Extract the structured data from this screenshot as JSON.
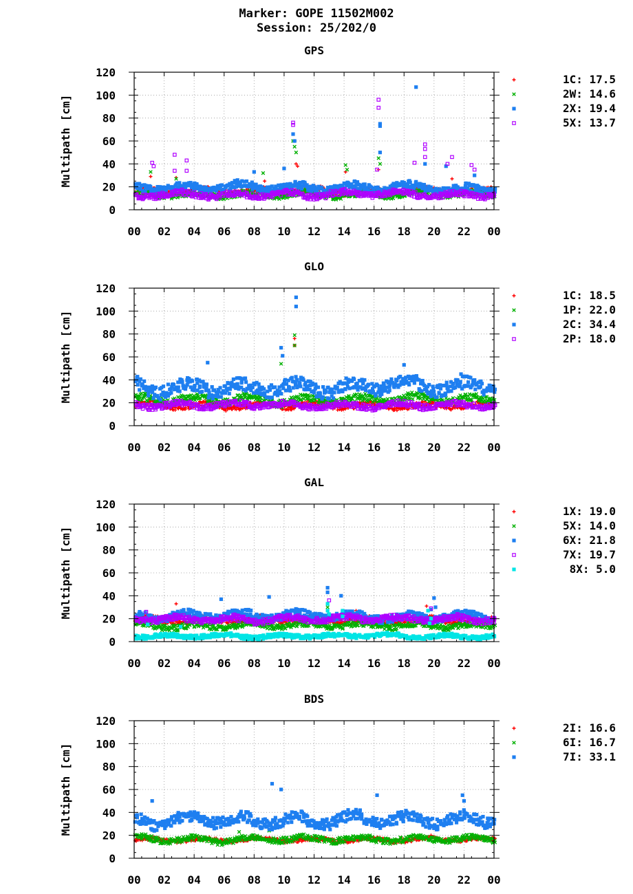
{
  "header": {
    "line1": "Marker: GOPE 11502M002",
    "line2": "Session: 25/202/0"
  },
  "colors": {
    "red": "#ff0000",
    "green": "#00b000",
    "blue": "#1e7ff0",
    "magenta": "#b000ff",
    "cyan": "#00e5e5"
  },
  "chart_data": [
    {
      "type": "scatter",
      "title": "GPS",
      "ylabel": "Multipath [cm]",
      "xlabel": "",
      "x_ticks": [
        "00",
        "02",
        "04",
        "06",
        "08",
        "10",
        "12",
        "14",
        "16",
        "18",
        "20",
        "22",
        "00"
      ],
      "y_ticks": [
        "0",
        "20",
        "40",
        "60",
        "80",
        "100",
        "120"
      ],
      "xlim": [
        0,
        24
      ],
      "ylim": [
        0,
        120
      ],
      "grid": true,
      "legend_position": "right",
      "series": [
        {
          "name": "1C",
          "stat": "17.5",
          "color": "red",
          "marker": "plus",
          "base": 16,
          "var": 3,
          "spikes": [
            [
              1.1,
              29
            ],
            [
              2.8,
              28
            ],
            [
              8.7,
              25
            ],
            [
              10.8,
              40
            ],
            [
              10.9,
              38
            ],
            [
              14.1,
              33
            ],
            [
              16.3,
              35
            ],
            [
              21.2,
              27
            ],
            [
              23.8,
              20
            ]
          ]
        },
        {
          "name": "2W",
          "stat": "14.6",
          "color": "green",
          "marker": "cross",
          "base": 13,
          "var": 3,
          "spikes": [
            [
              1.1,
              33
            ],
            [
              2.8,
              27
            ],
            [
              8.6,
              32
            ],
            [
              10.6,
              60
            ],
            [
              10.7,
              55
            ],
            [
              10.8,
              50
            ],
            [
              14.1,
              39
            ],
            [
              14.2,
              35
            ],
            [
              16.3,
              45
            ],
            [
              16.4,
              40
            ]
          ]
        },
        {
          "name": "2X",
          "stat": "19.4",
          "color": "blue",
          "marker": "square",
          "base": 19,
          "var": 4,
          "spikes": [
            [
              8.0,
              33
            ],
            [
              10.0,
              36
            ],
            [
              10.6,
              66
            ],
            [
              10.7,
              60
            ],
            [
              16.4,
              73
            ],
            [
              16.4,
              75
            ],
            [
              16.4,
              50
            ],
            [
              18.8,
              107
            ],
            [
              19.4,
              40
            ],
            [
              20.8,
              38
            ],
            [
              22.7,
              30
            ]
          ]
        },
        {
          "name": "5X",
          "stat": "13.7",
          "color": "magenta",
          "marker": "opensquare",
          "base": 13,
          "var": 3,
          "spikes": [
            [
              1.2,
              41
            ],
            [
              1.3,
              38
            ],
            [
              2.7,
              48
            ],
            [
              2.7,
              34
            ],
            [
              3.5,
              43
            ],
            [
              3.5,
              34
            ],
            [
              10.6,
              76
            ],
            [
              10.6,
              74
            ],
            [
              16.3,
              96
            ],
            [
              16.3,
              89
            ],
            [
              16.2,
              35
            ],
            [
              18.7,
              41
            ],
            [
              19.4,
              57
            ],
            [
              19.4,
              53
            ],
            [
              19.4,
              46
            ],
            [
              20.9,
              40
            ],
            [
              21.2,
              46
            ],
            [
              22.5,
              39
            ],
            [
              22.7,
              35
            ]
          ]
        }
      ]
    },
    {
      "type": "scatter",
      "title": "GLO",
      "ylabel": "Multipath [cm]",
      "xlabel": "",
      "x_ticks": [
        "00",
        "02",
        "04",
        "06",
        "08",
        "10",
        "12",
        "14",
        "16",
        "18",
        "20",
        "22",
        "00"
      ],
      "y_ticks": [
        "0",
        "20",
        "40",
        "60",
        "80",
        "100",
        "120"
      ],
      "xlim": [
        0,
        24
      ],
      "ylim": [
        0,
        120
      ],
      "grid": true,
      "legend_position": "right",
      "series": [
        {
          "name": "1C",
          "stat": "18.5",
          "color": "red",
          "marker": "plus",
          "base": 18,
          "var": 3,
          "spikes": [
            [
              10.7,
              76
            ],
            [
              10.7,
              70
            ]
          ]
        },
        {
          "name": "1P",
          "stat": "22.0",
          "color": "green",
          "marker": "cross",
          "base": 23,
          "var": 4,
          "spikes": [
            [
              9.8,
              54
            ],
            [
              10.7,
              79
            ],
            [
              10.7,
              70
            ]
          ]
        },
        {
          "name": "2C",
          "stat": "34.4",
          "color": "blue",
          "marker": "square",
          "base": 34,
          "var": 7,
          "spikes": [
            [
              4.9,
              55
            ],
            [
              9.8,
              68
            ],
            [
              9.9,
              61
            ],
            [
              10.8,
              112
            ],
            [
              10.8,
              104
            ],
            [
              18.0,
              53
            ],
            [
              21.8,
              45
            ]
          ]
        },
        {
          "name": "2P",
          "stat": "18.0",
          "color": "magenta",
          "marker": "opensquare",
          "base": 18,
          "var": 3,
          "spikes": []
        }
      ]
    },
    {
      "type": "scatter",
      "title": "GAL",
      "ylabel": "Multipath [cm]",
      "xlabel": "",
      "x_ticks": [
        "00",
        "02",
        "04",
        "06",
        "08",
        "10",
        "12",
        "14",
        "16",
        "18",
        "20",
        "22",
        "00"
      ],
      "y_ticks": [
        "0",
        "20",
        "40",
        "60",
        "80",
        "100",
        "120"
      ],
      "xlim": [
        0,
        24
      ],
      "ylim": [
        0,
        120
      ],
      "grid": true,
      "legend_position": "right",
      "series": [
        {
          "name": "1X",
          "stat": "19.0",
          "color": "red",
          "marker": "plus",
          "base": 19,
          "var": 3,
          "spikes": [
            [
              2.8,
              33
            ],
            [
              14.8,
              27
            ],
            [
              19.5,
              31
            ]
          ]
        },
        {
          "name": "5X",
          "stat": "14.0",
          "color": "green",
          "marker": "cross",
          "base": 14,
          "var": 3,
          "spikes": [
            [
              12.9,
              30
            ],
            [
              19.7,
              21
            ]
          ]
        },
        {
          "name": "6X",
          "stat": "21.8",
          "color": "blue",
          "marker": "square",
          "base": 22,
          "var": 4,
          "spikes": [
            [
              5.8,
              37
            ],
            [
              9.0,
              39
            ],
            [
              12.9,
              47
            ],
            [
              12.9,
              43
            ],
            [
              13.8,
              40
            ],
            [
              20.0,
              38
            ],
            [
              20.1,
              30
            ],
            [
              19.8,
              28
            ]
          ]
        },
        {
          "name": "7X",
          "stat": "19.7",
          "color": "magenta",
          "marker": "opensquare",
          "base": 20,
          "var": 3,
          "spikes": [
            [
              0.8,
              26
            ],
            [
              13.0,
              36
            ],
            [
              19.8,
              29
            ]
          ]
        },
        {
          "name": "8X",
          "stat": "5.0",
          "color": "cyan",
          "marker": "square",
          "base": 5,
          "var": 2,
          "spikes": [
            [
              0.9,
              15
            ],
            [
              3.1,
              13
            ],
            [
              12.9,
              33
            ],
            [
              12.9,
              27
            ],
            [
              13.0,
              24
            ],
            [
              13.9,
              27
            ],
            [
              13.9,
              22
            ],
            [
              19.6,
              27
            ],
            [
              19.8,
              20
            ],
            [
              19.7,
              16
            ]
          ]
        }
      ]
    },
    {
      "type": "scatter",
      "title": "BDS",
      "ylabel": "Multipath [cm]",
      "xlabel": "",
      "x_ticks": [
        "00",
        "02",
        "04",
        "06",
        "08",
        "10",
        "12",
        "14",
        "16",
        "18",
        "20",
        "22",
        "00"
      ],
      "y_ticks": [
        "0",
        "20",
        "40",
        "60",
        "80",
        "100",
        "120"
      ],
      "xlim": [
        0,
        24
      ],
      "ylim": [
        0,
        120
      ],
      "grid": true,
      "legend_position": "right",
      "series": [
        {
          "name": "2I",
          "stat": "16.6",
          "color": "red",
          "marker": "plus",
          "base": 16,
          "var": 2,
          "spikes": [
            [
              9.5,
              15
            ],
            [
              17.8,
              18
            ],
            [
              19.8,
              20
            ]
          ]
        },
        {
          "name": "6I",
          "stat": "16.7",
          "color": "green",
          "marker": "cross",
          "base": 17,
          "var": 3,
          "spikes": [
            [
              7.0,
              23
            ],
            [
              9.0,
              24
            ]
          ]
        },
        {
          "name": "7I",
          "stat": "33.1",
          "color": "blue",
          "marker": "square",
          "base": 33,
          "var": 6,
          "spikes": [
            [
              1.2,
              50
            ],
            [
              9.2,
              65
            ],
            [
              9.8,
              60
            ],
            [
              16.2,
              55
            ],
            [
              21.9,
              55
            ],
            [
              22.0,
              50
            ]
          ]
        }
      ]
    }
  ]
}
